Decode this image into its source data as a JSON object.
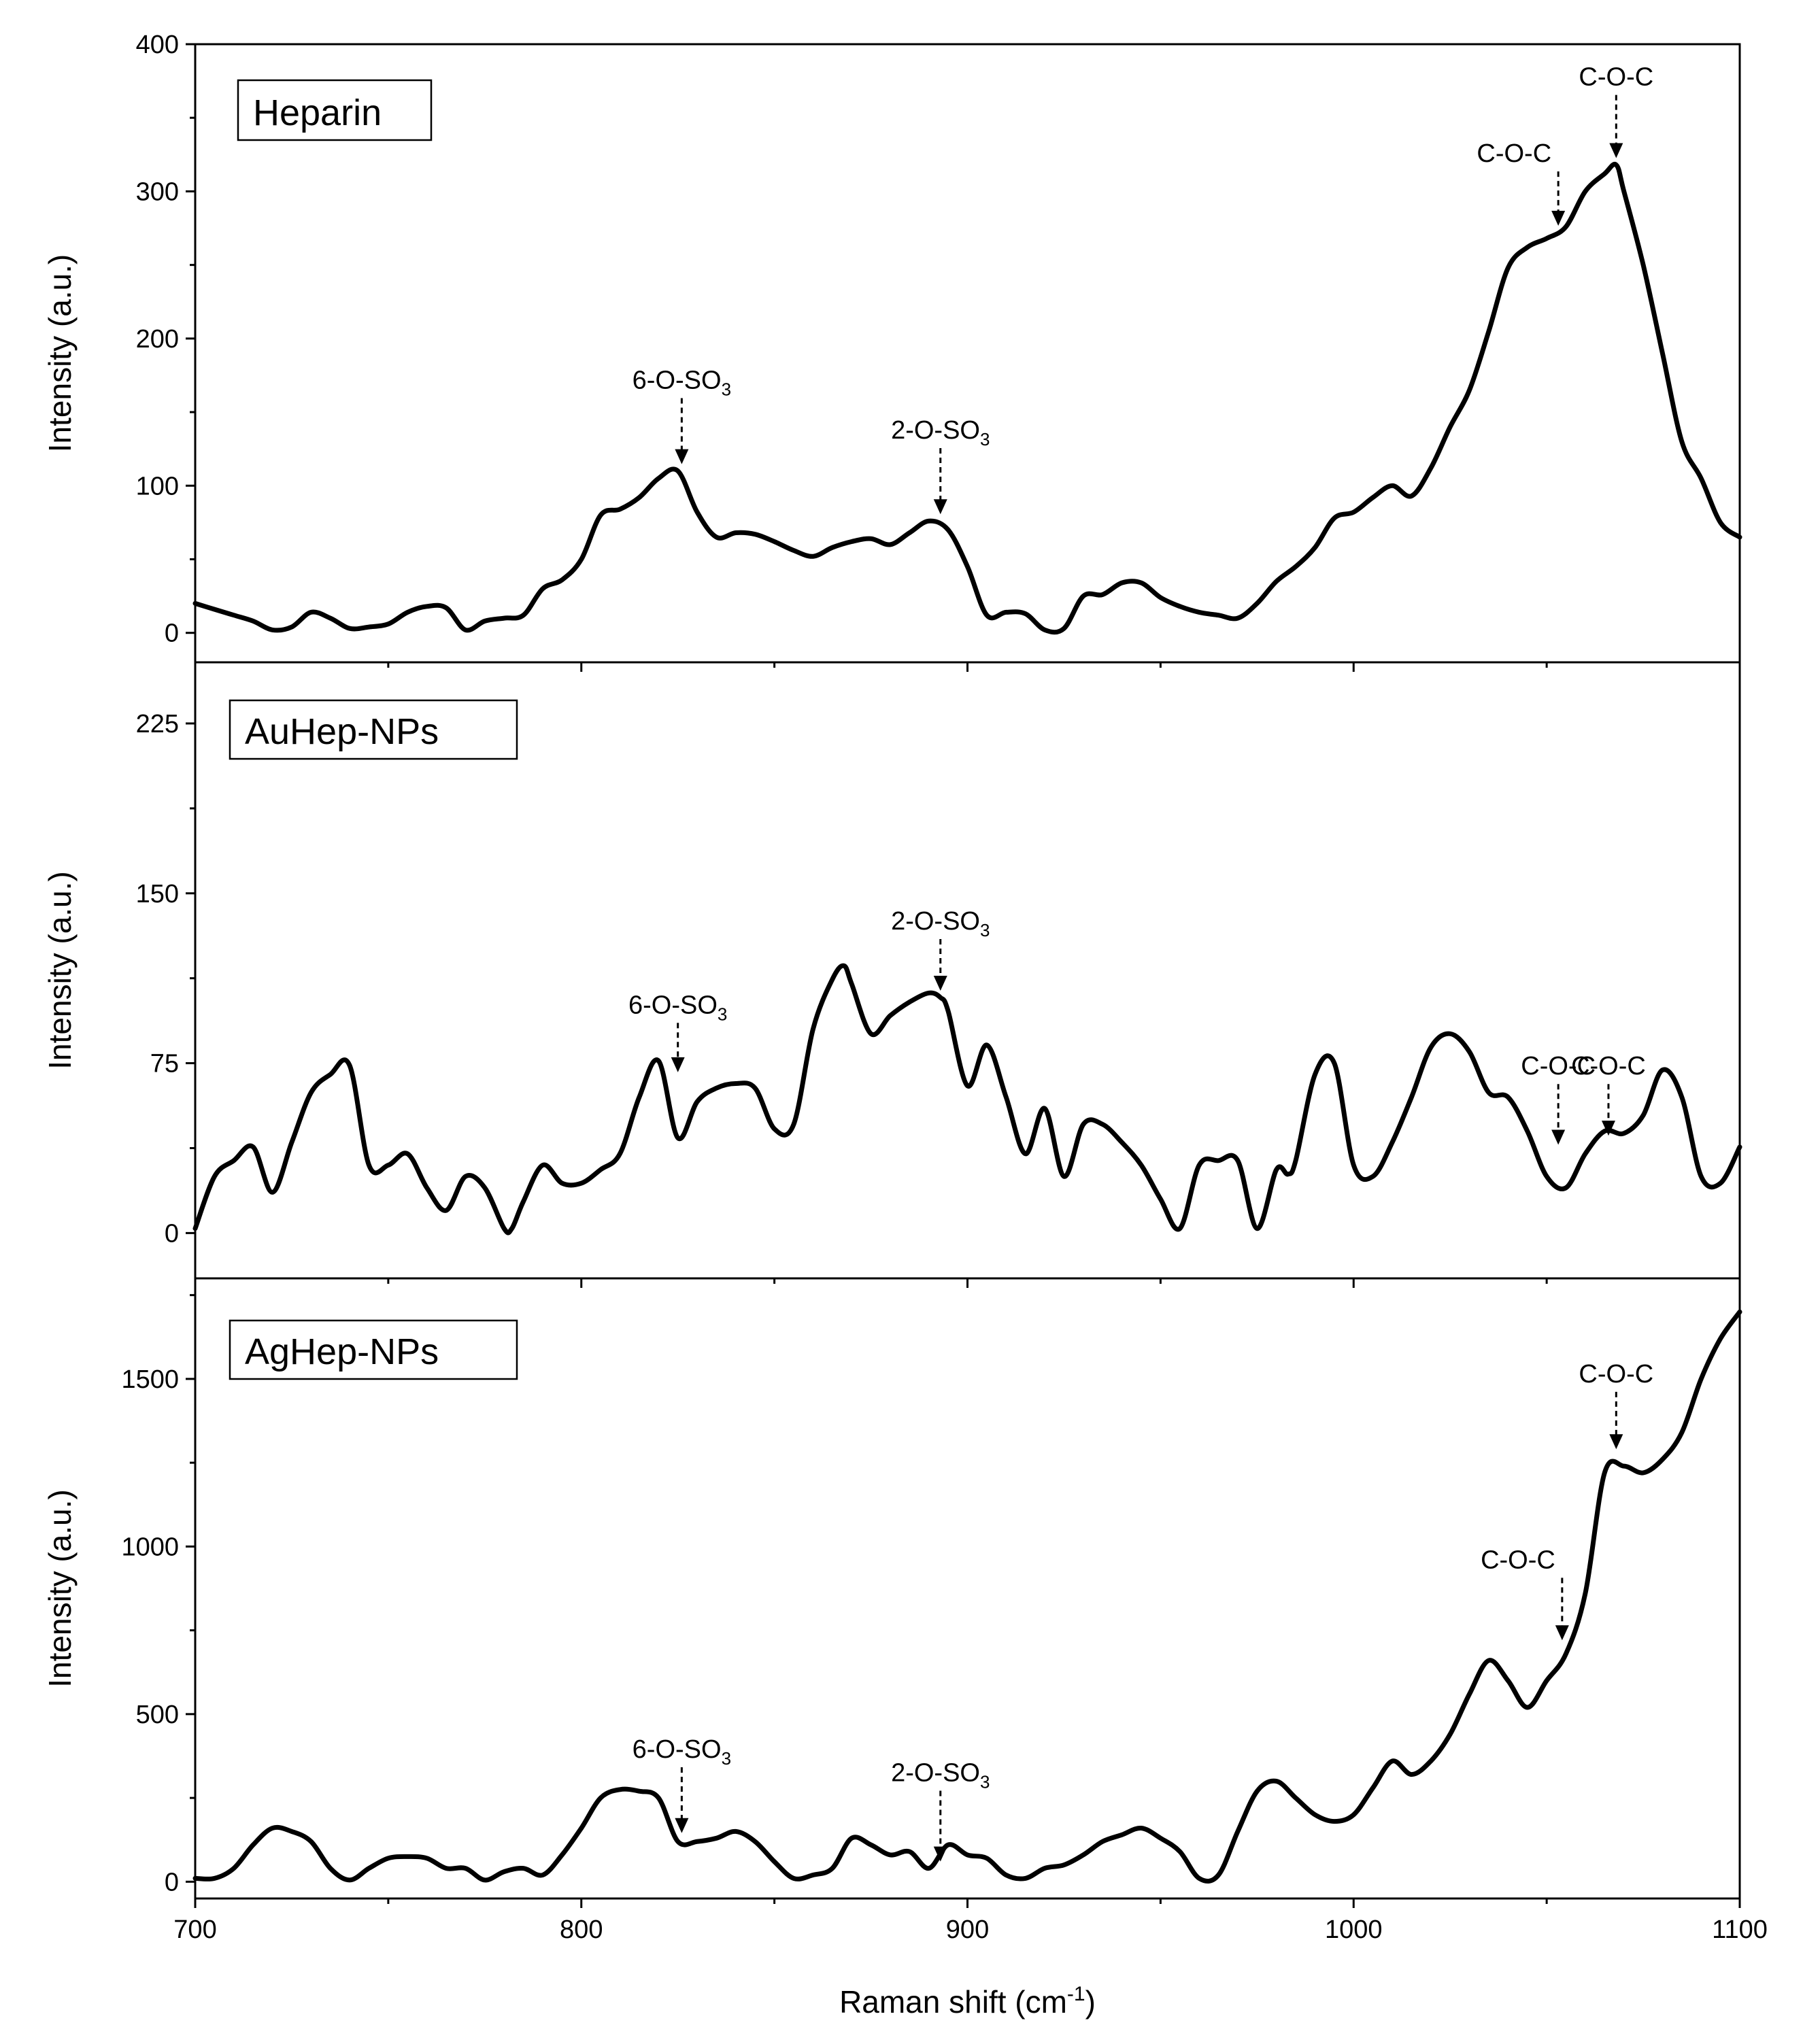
{
  "chart_data": [
    {
      "type": "line",
      "panel_label": "Heparin",
      "ylabel": "Intensity (a.u.)",
      "xlabel_main": "Raman shift (cm",
      "xlabel_sup": "-1",
      "xlabel_close": ")",
      "xlim": [
        700,
        1100
      ],
      "ylim": [
        -20,
        400
      ],
      "x_ticks": [
        700,
        800,
        900,
        1000,
        1100
      ],
      "y_ticks": [
        0,
        100,
        200,
        300,
        400
      ],
      "y_tick_labels": [
        "0",
        "100",
        "200",
        "300",
        "400"
      ],
      "series": [
        {
          "name": "Heparin",
          "x": [
            700,
            705,
            710,
            715,
            720,
            725,
            730,
            735,
            740,
            745,
            750,
            755,
            760,
            765,
            770,
            775,
            780,
            785,
            790,
            795,
            800,
            805,
            810,
            815,
            820,
            825,
            830,
            835,
            840,
            845,
            850,
            855,
            860,
            865,
            870,
            875,
            880,
            885,
            890,
            895,
            900,
            905,
            910,
            915,
            920,
            925,
            930,
            935,
            940,
            945,
            950,
            955,
            960,
            965,
            970,
            975,
            980,
            985,
            990,
            995,
            1000,
            1005,
            1010,
            1015,
            1020,
            1025,
            1030,
            1035,
            1040,
            1045,
            1050,
            1055,
            1060,
            1065,
            1068,
            1070,
            1075,
            1080,
            1085,
            1090,
            1095,
            1100
          ],
          "y": [
            20,
            16,
            12,
            8,
            2,
            4,
            14,
            10,
            3,
            4,
            6,
            14,
            18,
            17,
            2,
            8,
            10,
            12,
            30,
            36,
            50,
            80,
            84,
            92,
            105,
            110,
            82,
            65,
            68,
            67,
            62,
            56,
            52,
            58,
            62,
            64,
            60,
            68,
            76,
            70,
            45,
            12,
            14,
            13,
            2,
            3,
            25,
            26,
            34,
            34,
            24,
            18,
            14,
            12,
            10,
            20,
            35,
            45,
            58,
            78,
            82,
            92,
            100,
            93,
            112,
            140,
            165,
            205,
            248,
            262,
            268,
            276,
            300,
            312,
            318,
            300,
            250,
            190,
            130,
            105,
            75,
            65
          ]
        }
      ],
      "annotations": [
        {
          "main": "6-O-SO",
          "sub": "3",
          "x": 826,
          "y_point": 110,
          "y_label": 166,
          "pos": "above"
        },
        {
          "main": "2-O-SO",
          "sub": "3",
          "x": 893,
          "y_point": 76,
          "y_label": 132,
          "pos": "above"
        },
        {
          "main": "C-O-C",
          "x": 1053,
          "y_point": 272,
          "y_label": 320,
          "pos": "above-left"
        },
        {
          "main": "C-O-C",
          "x": 1068,
          "y_point": 318,
          "y_label": 372,
          "pos": "above"
        }
      ]
    },
    {
      "type": "line",
      "panel_label": "AuHep-NPs",
      "ylabel": "Intensity (a.u.)",
      "xlim": [
        700,
        1100
      ],
      "ylim": [
        -20,
        252
      ],
      "x_ticks": [
        700,
        800,
        900,
        1000,
        1100
      ],
      "y_ticks": [
        0,
        75,
        150,
        225
      ],
      "y_tick_labels": [
        "0",
        "75",
        "150",
        "225"
      ],
      "series": [
        {
          "name": "AuHep-NPs",
          "x": [
            700,
            705,
            710,
            715,
            720,
            725,
            730,
            735,
            740,
            745,
            750,
            755,
            760,
            765,
            770,
            775,
            780,
            782,
            785,
            790,
            795,
            800,
            805,
            810,
            815,
            820,
            825,
            830,
            835,
            840,
            845,
            850,
            855,
            860,
            865,
            868,
            870,
            875,
            880,
            885,
            890,
            893,
            895,
            900,
            905,
            910,
            915,
            920,
            925,
            930,
            935,
            940,
            945,
            950,
            955,
            960,
            965,
            970,
            975,
            980,
            983,
            985,
            990,
            995,
            1000,
            1005,
            1010,
            1015,
            1020,
            1025,
            1030,
            1035,
            1040,
            1045,
            1050,
            1055,
            1060,
            1065,
            1070,
            1075,
            1080,
            1085,
            1090,
            1095,
            1100
          ],
          "y": [
            2,
            25,
            32,
            38,
            18,
            40,
            62,
            70,
            74,
            30,
            30,
            35,
            20,
            10,
            25,
            20,
            2,
            2,
            14,
            30,
            22,
            22,
            28,
            35,
            60,
            76,
            42,
            58,
            64,
            66,
            64,
            46,
            48,
            90,
            112,
            118,
            110,
            88,
            96,
            102,
            106,
            104,
            98,
            65,
            83,
            60,
            35,
            55,
            25,
            48,
            48,
            40,
            30,
            15,
            2,
            30,
            32,
            32,
            2,
            28,
            26,
            32,
            70,
            75,
            30,
            25,
            40,
            60,
            82,
            88,
            80,
            62,
            60,
            45,
            25,
            20,
            35,
            45,
            44,
            52,
            72,
            60,
            25,
            22,
            38
          ]
        }
      ],
      "annotations": [
        {
          "main": "6-O-SO",
          "sub": "3",
          "x": 825,
          "y_point": 68,
          "y_label": 97,
          "pos": "above"
        },
        {
          "main": "2-O-SO",
          "sub": "3",
          "x": 893,
          "y_point": 104,
          "y_label": 134,
          "pos": "above"
        },
        {
          "main": "C-O-C",
          "x": 1053,
          "y_point": 36,
          "y_label": 70,
          "pos": "above"
        },
        {
          "main": "C-O-C",
          "x": 1066,
          "y_point": 40,
          "y_label": 70,
          "pos": "above"
        }
      ]
    },
    {
      "type": "line",
      "panel_label": "AgHep-NPs",
      "ylabel": "Intensity (a.u.)",
      "xlim": [
        700,
        1100
      ],
      "ylim": [
        -50,
        1800
      ],
      "x_ticks": [
        700,
        800,
        900,
        1000,
        1100
      ],
      "x_tick_labels": [
        "700",
        "800",
        "900",
        "1000",
        "1100"
      ],
      "y_ticks": [
        0,
        500,
        1000,
        1500
      ],
      "y_tick_labels": [
        "0",
        "500",
        "1000",
        "1500"
      ],
      "series": [
        {
          "name": "AgHep-NPs",
          "x": [
            700,
            705,
            710,
            715,
            720,
            725,
            730,
            735,
            740,
            745,
            750,
            755,
            760,
            765,
            770,
            775,
            780,
            785,
            790,
            795,
            800,
            805,
            810,
            815,
            820,
            825,
            830,
            835,
            840,
            845,
            850,
            855,
            860,
            865,
            870,
            875,
            880,
            885,
            890,
            895,
            900,
            905,
            910,
            915,
            920,
            925,
            930,
            935,
            940,
            945,
            950,
            955,
            960,
            965,
            970,
            975,
            980,
            985,
            990,
            995,
            1000,
            1005,
            1010,
            1015,
            1020,
            1025,
            1030,
            1035,
            1040,
            1045,
            1050,
            1055,
            1060,
            1065,
            1070,
            1075,
            1080,
            1085,
            1090,
            1095,
            1100
          ],
          "y": [
            10,
            10,
            40,
            110,
            160,
            150,
            120,
            40,
            5,
            40,
            70,
            75,
            70,
            40,
            40,
            5,
            30,
            40,
            20,
            80,
            160,
            250,
            275,
            270,
            250,
            120,
            120,
            130,
            150,
            120,
            60,
            10,
            20,
            40,
            130,
            110,
            80,
            90,
            40,
            110,
            80,
            70,
            20,
            10,
            40,
            50,
            80,
            120,
            140,
            160,
            130,
            90,
            10,
            20,
            150,
            270,
            300,
            250,
            200,
            180,
            200,
            280,
            360,
            320,
            360,
            440,
            560,
            660,
            600,
            520,
            600,
            680,
            860,
            1220,
            1240,
            1220,
            1260,
            1340,
            1500,
            1620,
            1700
          ]
        }
      ],
      "annotations": [
        {
          "main": "6-O-SO",
          "sub": "3",
          "x": 826,
          "y_point": 125,
          "y_label": 370,
          "pos": "above"
        },
        {
          "main": "2-O-SO",
          "sub": "3",
          "x": 893,
          "y_point": 40,
          "y_label": 300,
          "pos": "above"
        },
        {
          "main": "C-O-C",
          "x": 1054,
          "y_point": 700,
          "y_label": 935,
          "pos": "above-left"
        },
        {
          "main": "C-O-C",
          "x": 1068,
          "y_point": 1270,
          "y_label": 1490,
          "pos": "above"
        }
      ]
    }
  ]
}
